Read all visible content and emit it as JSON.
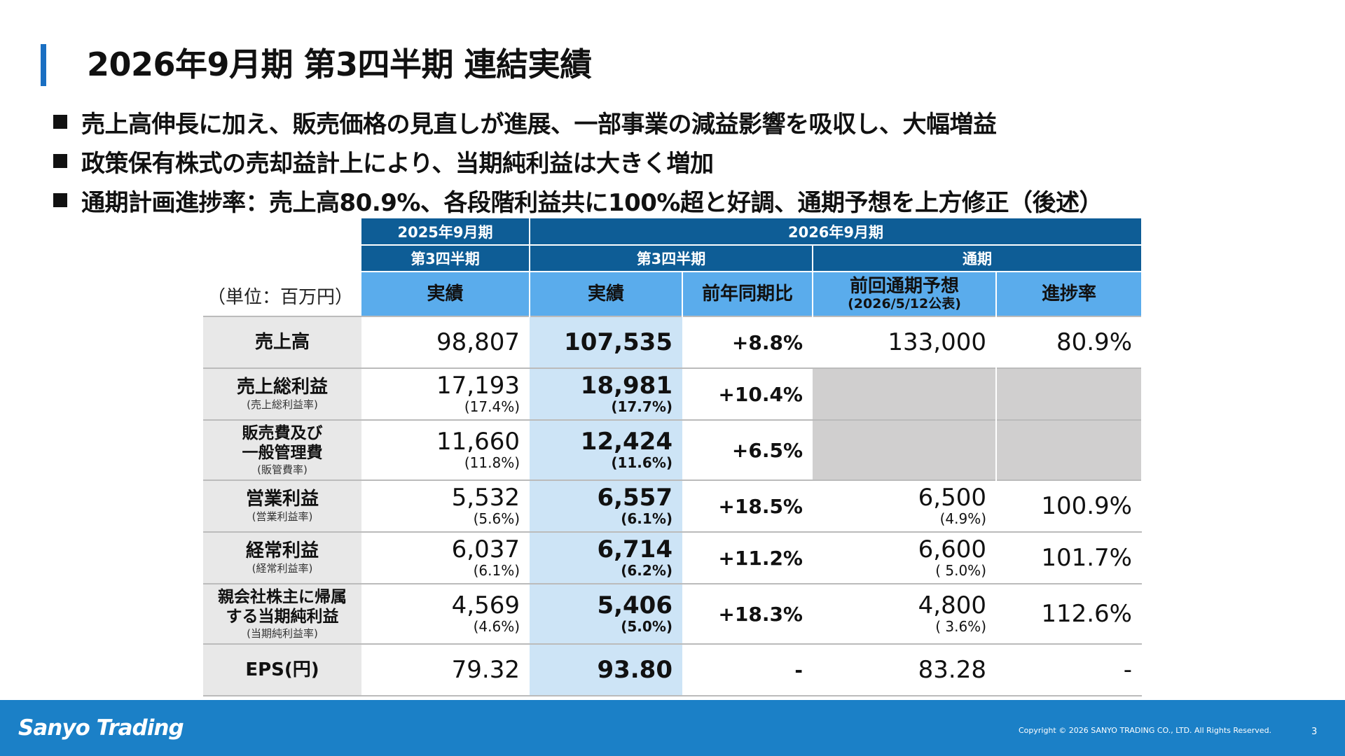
{
  "title": "2026年9月期 第3四半期 連結実績",
  "bullets": [
    "売上高伸長に加え、販売価格の見直しが進展、一部事業の減益影響を吸収し、大幅増益",
    "政策保有株式の売却益計上により、当期純利益は大きく増加",
    "通期計画進捗率：売上高80.9%、各段階利益共に100%超と好調、通期予想を上方修正（後述）"
  ],
  "table": {
    "unit": "（単位：百万円）",
    "header": {
      "fy2025": "2025年9月期",
      "fy2026": "2026年9月期",
      "q3_prev": "第3四半期",
      "q3_cur": "第3四半期",
      "full_year": "通期",
      "actual_prev": "実績",
      "actual_cur": "実績",
      "yoy": "前年同期比",
      "forecast": "前回通期予想",
      "forecast_date": "(2026/5/12公表)",
      "progress": "進捗率"
    },
    "rows": [
      {
        "label": "売上高",
        "prev": "98,807",
        "cur": "107,535",
        "yoy": "+8.8%",
        "fc": "133,000",
        "prog": "80.9%"
      },
      {
        "label": "売上総利益",
        "sub": "(売上総利益率)",
        "prev": "17,193",
        "prev_pct": "(17.4%)",
        "cur": "18,981",
        "cur_pct": "(17.7%)",
        "yoy": "+10.4%"
      },
      {
        "label1": "販売費及び",
        "label2": "一般管理費",
        "sub": "(販管費率)",
        "prev": "11,660",
        "prev_pct": "(11.8%)",
        "cur": "12,424",
        "cur_pct": "(11.6%)",
        "yoy": "+6.5%"
      },
      {
        "label": "営業利益",
        "sub": "(営業利益率)",
        "prev": "5,532",
        "prev_pct": "(5.6%)",
        "cur": "6,557",
        "cur_pct": "(6.1%)",
        "yoy": "+18.5%",
        "fc": "6,500",
        "fc_pct": "(4.9%)",
        "prog": "100.9%"
      },
      {
        "label": "経常利益",
        "sub": "(経常利益率)",
        "prev": "6,037",
        "prev_pct": "(6.1%)",
        "cur": "6,714",
        "cur_pct": "(6.2%)",
        "yoy": "+11.2%",
        "fc": "6,600",
        "fc_pct": "( 5.0%)",
        "prog": "101.7%"
      },
      {
        "label1": "親会社株主に帰属",
        "label2": "する当期純利益",
        "sub": "(当期純利益率)",
        "prev": "4,569",
        "prev_pct": "(4.6%)",
        "cur": "5,406",
        "cur_pct": "(5.0%)",
        "yoy": "+18.3%",
        "fc": "4,800",
        "fc_pct": "( 3.6%)",
        "prog": "112.6%"
      },
      {
        "label": "EPS(円)",
        "prev": "79.32",
        "cur": "93.80",
        "yoy": "-",
        "fc": "83.28",
        "prog": "-"
      }
    ]
  },
  "footer": {
    "logo": "Sanyo Trading",
    "copyright": "Copyright © 2026 SANYO TRADING CO., LTD. All Rights Reserved.",
    "page": "3"
  },
  "colors": {
    "header_dark": "#0e5d96",
    "header_light": "#5aacec",
    "current_col": "#cde4f6",
    "footer": "#1b80c7",
    "accent_bar": "#1a6fc2"
  }
}
